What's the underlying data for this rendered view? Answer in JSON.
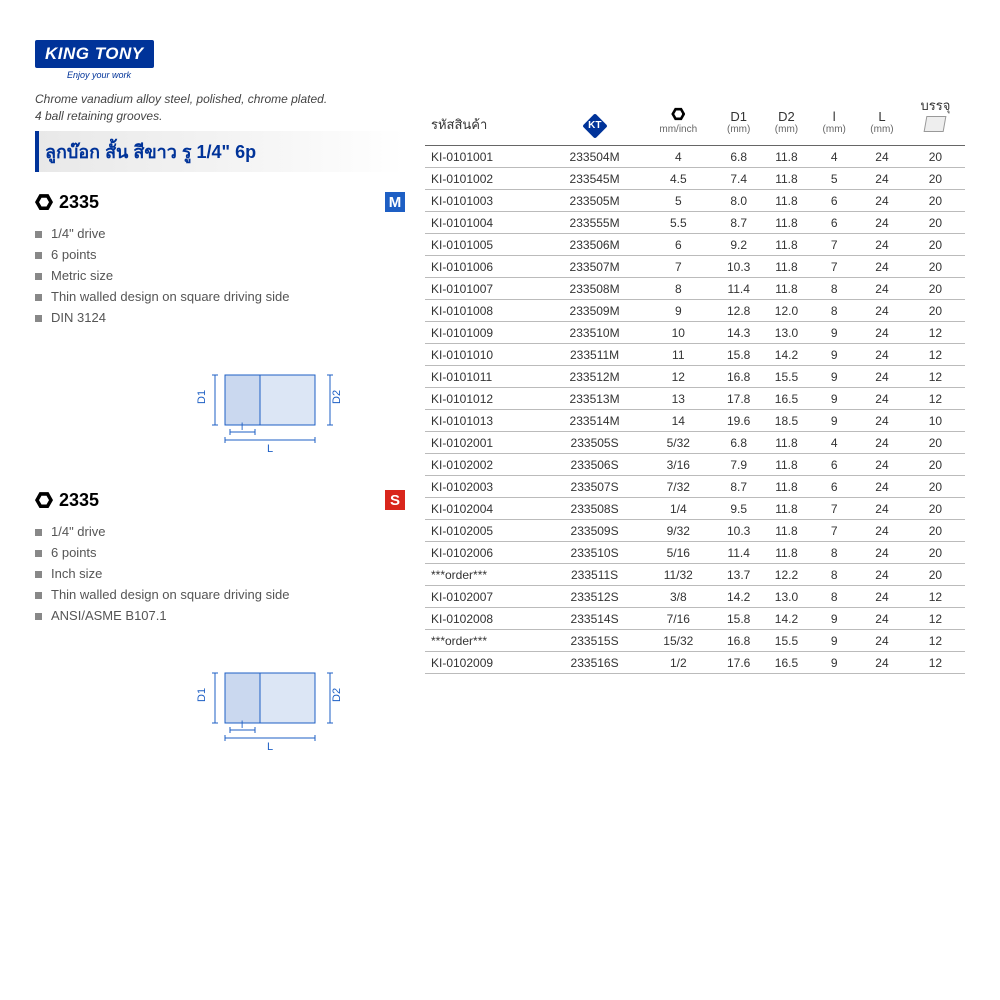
{
  "brand": {
    "name": "KING TONY",
    "tagline": "Enjoy your work"
  },
  "subtitle": "Chrome vanadium alloy steel, polished, chrome plated.\n4 ball retaining grooves.",
  "product_title": "ลูกบ๊อก สั้น สีขาว รู 1/4\" 6p",
  "specs": [
    {
      "code": "2335",
      "unit_letter": "M",
      "unit_class": "unit-m",
      "items": [
        "1/4\" drive",
        "6 points",
        "Metric size",
        "Thin walled design on square driving side",
        "DIN 3124"
      ]
    },
    {
      "code": "2335",
      "unit_letter": "S",
      "unit_class": "unit-s",
      "items": [
        "1/4\" drive",
        "6 points",
        "Inch size",
        "Thin walled design on square driving side",
        "ANSI/ASME B107.1"
      ]
    }
  ],
  "table": {
    "headers": {
      "sku": "รหัสสินค้า",
      "size_unit": "mm/inch",
      "d1": "D1",
      "d1_sub": "(mm)",
      "d2": "D2",
      "d2_sub": "(mm)",
      "l_small": "l",
      "l_small_sub": "(mm)",
      "l_big": "L",
      "l_big_sub": "(mm)",
      "pack": "บรรจุ"
    },
    "metric_rows": [
      {
        "sku": "KI-0101001",
        "pn": "233504M",
        "size": "4",
        "d1": "6.8",
        "d2": "11.8",
        "l": "4",
        "L": "24",
        "pk": "20"
      },
      {
        "sku": "KI-0101002",
        "pn": "233545M",
        "size": "4.5",
        "d1": "7.4",
        "d2": "11.8",
        "l": "5",
        "L": "24",
        "pk": "20"
      },
      {
        "sku": "KI-0101003",
        "pn": "233505M",
        "size": "5",
        "d1": "8.0",
        "d2": "11.8",
        "l": "6",
        "L": "24",
        "pk": "20"
      },
      {
        "sku": "KI-0101004",
        "pn": "233555M",
        "size": "5.5",
        "d1": "8.7",
        "d2": "11.8",
        "l": "6",
        "L": "24",
        "pk": "20"
      },
      {
        "sku": "KI-0101005",
        "pn": "233506M",
        "size": "6",
        "d1": "9.2",
        "d2": "11.8",
        "l": "7",
        "L": "24",
        "pk": "20"
      },
      {
        "sku": "KI-0101006",
        "pn": "233507M",
        "size": "7",
        "d1": "10.3",
        "d2": "11.8",
        "l": "7",
        "L": "24",
        "pk": "20"
      },
      {
        "sku": "KI-0101007",
        "pn": "233508M",
        "size": "8",
        "d1": "11.4",
        "d2": "11.8",
        "l": "8",
        "L": "24",
        "pk": "20"
      },
      {
        "sku": "KI-0101008",
        "pn": "233509M",
        "size": "9",
        "d1": "12.8",
        "d2": "12.0",
        "l": "8",
        "L": "24",
        "pk": "20"
      },
      {
        "sku": "KI-0101009",
        "pn": "233510M",
        "size": "10",
        "d1": "14.3",
        "d2": "13.0",
        "l": "9",
        "L": "24",
        "pk": "12"
      },
      {
        "sku": "KI-0101010",
        "pn": "233511M",
        "size": "11",
        "d1": "15.8",
        "d2": "14.2",
        "l": "9",
        "L": "24",
        "pk": "12"
      },
      {
        "sku": "KI-0101011",
        "pn": "233512M",
        "size": "12",
        "d1": "16.8",
        "d2": "15.5",
        "l": "9",
        "L": "24",
        "pk": "12"
      },
      {
        "sku": "KI-0101012",
        "pn": "233513M",
        "size": "13",
        "d1": "17.8",
        "d2": "16.5",
        "l": "9",
        "L": "24",
        "pk": "12"
      },
      {
        "sku": "KI-0101013",
        "pn": "233514M",
        "size": "14",
        "d1": "19.6",
        "d2": "18.5",
        "l": "9",
        "L": "24",
        "pk": "10"
      }
    ],
    "inch_rows": [
      {
        "sku": "KI-0102001",
        "pn": "233505S",
        "size": "5/32",
        "d1": "6.8",
        "d2": "11.8",
        "l": "4",
        "L": "24",
        "pk": "20"
      },
      {
        "sku": "KI-0102002",
        "pn": "233506S",
        "size": "3/16",
        "d1": "7.9",
        "d2": "11.8",
        "l": "6",
        "L": "24",
        "pk": "20"
      },
      {
        "sku": "KI-0102003",
        "pn": "233507S",
        "size": "7/32",
        "d1": "8.7",
        "d2": "11.8",
        "l": "6",
        "L": "24",
        "pk": "20"
      },
      {
        "sku": "KI-0102004",
        "pn": "233508S",
        "size": "1/4",
        "d1": "9.5",
        "d2": "11.8",
        "l": "7",
        "L": "24",
        "pk": "20"
      },
      {
        "sku": "KI-0102005",
        "pn": "233509S",
        "size": "9/32",
        "d1": "10.3",
        "d2": "11.8",
        "l": "7",
        "L": "24",
        "pk": "20"
      },
      {
        "sku": "KI-0102006",
        "pn": "233510S",
        "size": "5/16",
        "d1": "11.4",
        "d2": "11.8",
        "l": "8",
        "L": "24",
        "pk": "20"
      },
      {
        "sku": "***order***",
        "pn": "233511S",
        "size": "11/32",
        "d1": "13.7",
        "d2": "12.2",
        "l": "8",
        "L": "24",
        "pk": "20"
      },
      {
        "sku": "KI-0102007",
        "pn": "233512S",
        "size": "3/8",
        "d1": "14.2",
        "d2": "13.0",
        "l": "8",
        "L": "24",
        "pk": "12"
      },
      {
        "sku": "KI-0102008",
        "pn": "233514S",
        "size": "7/16",
        "d1": "15.8",
        "d2": "14.2",
        "l": "9",
        "L": "24",
        "pk": "12"
      },
      {
        "sku": "***order***",
        "pn": "233515S",
        "size": "15/32",
        "d1": "16.8",
        "d2": "15.5",
        "l": "9",
        "L": "24",
        "pk": "12"
      },
      {
        "sku": "KI-0102009",
        "pn": "233516S",
        "size": "1/2",
        "d1": "17.6",
        "d2": "16.5",
        "l": "9",
        "L": "24",
        "pk": "12"
      }
    ]
  },
  "colors": {
    "brand_blue": "#003399",
    "size_blue": "#1e5fc4",
    "size_red": "#d9261c",
    "rule": "#bbbbbb",
    "heavy_rule": "#666666",
    "text": "#333333",
    "bg": "#ffffff"
  },
  "diagram_labels": {
    "d1": "D1",
    "d2": "D2",
    "l": "l",
    "L": "L"
  }
}
